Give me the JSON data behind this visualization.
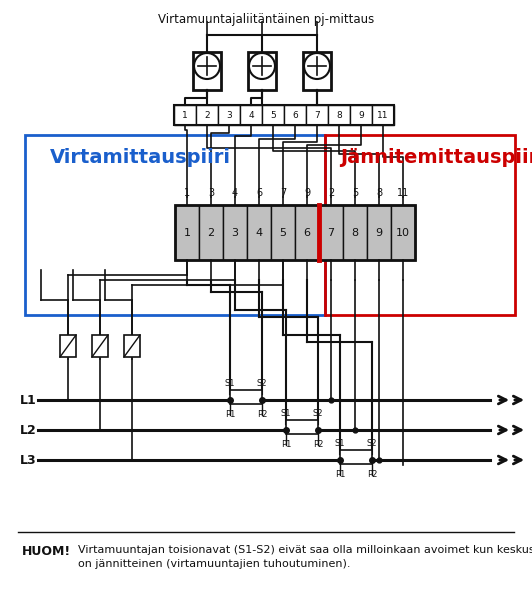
{
  "title": "Virtamuuntajaliitäntäinen pj-mittaus",
  "blue_label": "Virtamittauspiiri",
  "red_label": "Jännitemittauspiiri",
  "note_bold": "HUOM!",
  "note_text": "Virtamuuntajan toisionavat (S1-S2) eivät saa olla milloinkaan avoimet kun keskus\non jännitteinen (virtamuuntajien tuhoutuminen).",
  "bg": "#ffffff",
  "blue": "#1a5fcc",
  "red": "#cc0000",
  "black": "#111111",
  "gray": "#c0c0c0",
  "top_terminal_labels": [
    "1",
    "2",
    "3",
    "4",
    "5",
    "6",
    "7",
    "8",
    "9",
    "11"
  ],
  "main_terminal_labels": [
    "1",
    "2",
    "3",
    "4",
    "5",
    "6",
    "7",
    "8",
    "9",
    "10"
  ],
  "wire_labels_left": [
    "1",
    "3",
    "4",
    "6",
    "7",
    "9"
  ],
  "wire_labels_right": [
    "2",
    "5",
    "8",
    "11"
  ],
  "L_labels": [
    "L1",
    "L2",
    "L3"
  ]
}
